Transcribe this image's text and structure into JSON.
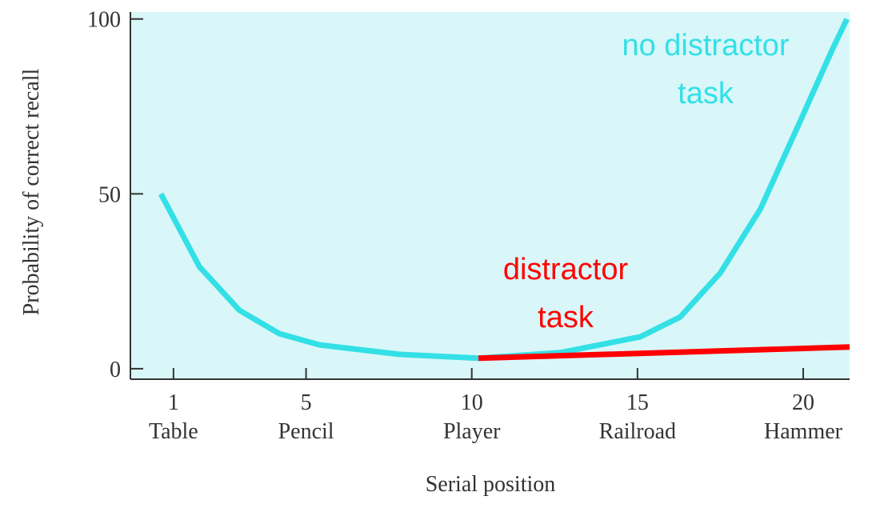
{
  "chart_data": {
    "type": "line",
    "xlabel": "Serial position",
    "ylabel": "Probability of correct recall",
    "xlim": [
      -0.3,
      21.4
    ],
    "ylim": [
      -3,
      102
    ],
    "xticks": [
      1,
      5,
      10,
      15,
      20
    ],
    "xtick_words": [
      "Table",
      "Pencil",
      "Player",
      "Railroad",
      "Hammer"
    ],
    "yticks": [
      0,
      50,
      100
    ],
    "background": "#d9f7f9",
    "series": [
      {
        "color": "#33e0e6",
        "x": [
          0.62,
          1.78,
          2.99,
          4.2,
          5.41,
          7.83,
          10.2,
          12.66,
          15.08,
          16.29,
          17.5,
          18.71,
          19.91,
          20.88,
          21.32
        ],
        "values": [
          50,
          29.2,
          16.7,
          10.0,
          6.8,
          4.1,
          3.0,
          4.6,
          9.1,
          14.8,
          27.4,
          45.7,
          70.8,
          91.3,
          100
        ]
      },
      {
        "color": "#ff0000",
        "x": [
          10.2,
          21.4
        ],
        "values": [
          3.0,
          6.2
        ]
      }
    ],
    "annotations": [
      {
        "lines": [
          "no distractor",
          "task"
        ],
        "color": "#33e0e6"
      },
      {
        "lines": [
          "distractor",
          "task"
        ],
        "color": "#ff0000"
      }
    ]
  }
}
